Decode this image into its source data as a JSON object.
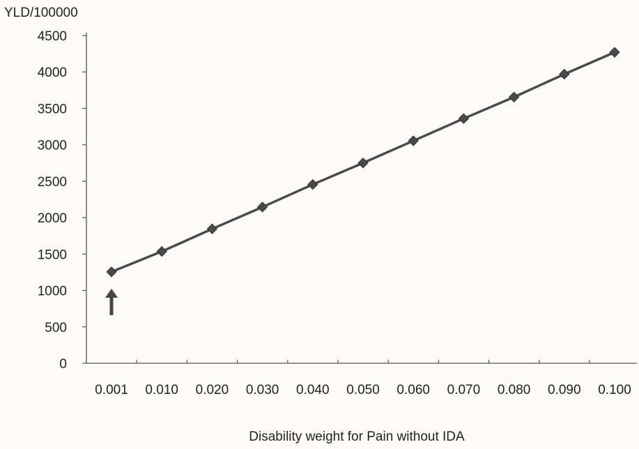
{
  "chart_data": {
    "type": "line",
    "ylabel": "YLD/100000",
    "xlabel": "Disability weight for Pain without  IDA",
    "categories": [
      "0.001",
      "0.010",
      "0.020",
      "0.030",
      "0.040",
      "0.050",
      "0.060",
      "0.070",
      "0.080",
      "0.090",
      "0.100"
    ],
    "series": [
      {
        "values": [
          1255,
          1535,
          1845,
          2145,
          2455,
          2750,
          3055,
          3360,
          3655,
          3970,
          4270
        ]
      }
    ],
    "ylim": [
      0,
      4500
    ],
    "yticks": [
      "0",
      "500",
      "1000",
      "1500",
      "2000",
      "2500",
      "3000",
      "3500",
      "4000",
      "4500"
    ],
    "grid": false,
    "legend": "none",
    "marker": "diamond",
    "line_color": "#4a4a4a",
    "marker_color": "#4a4a4a",
    "annotation": {
      "type": "arrow",
      "points_to_category": "0.001"
    }
  }
}
